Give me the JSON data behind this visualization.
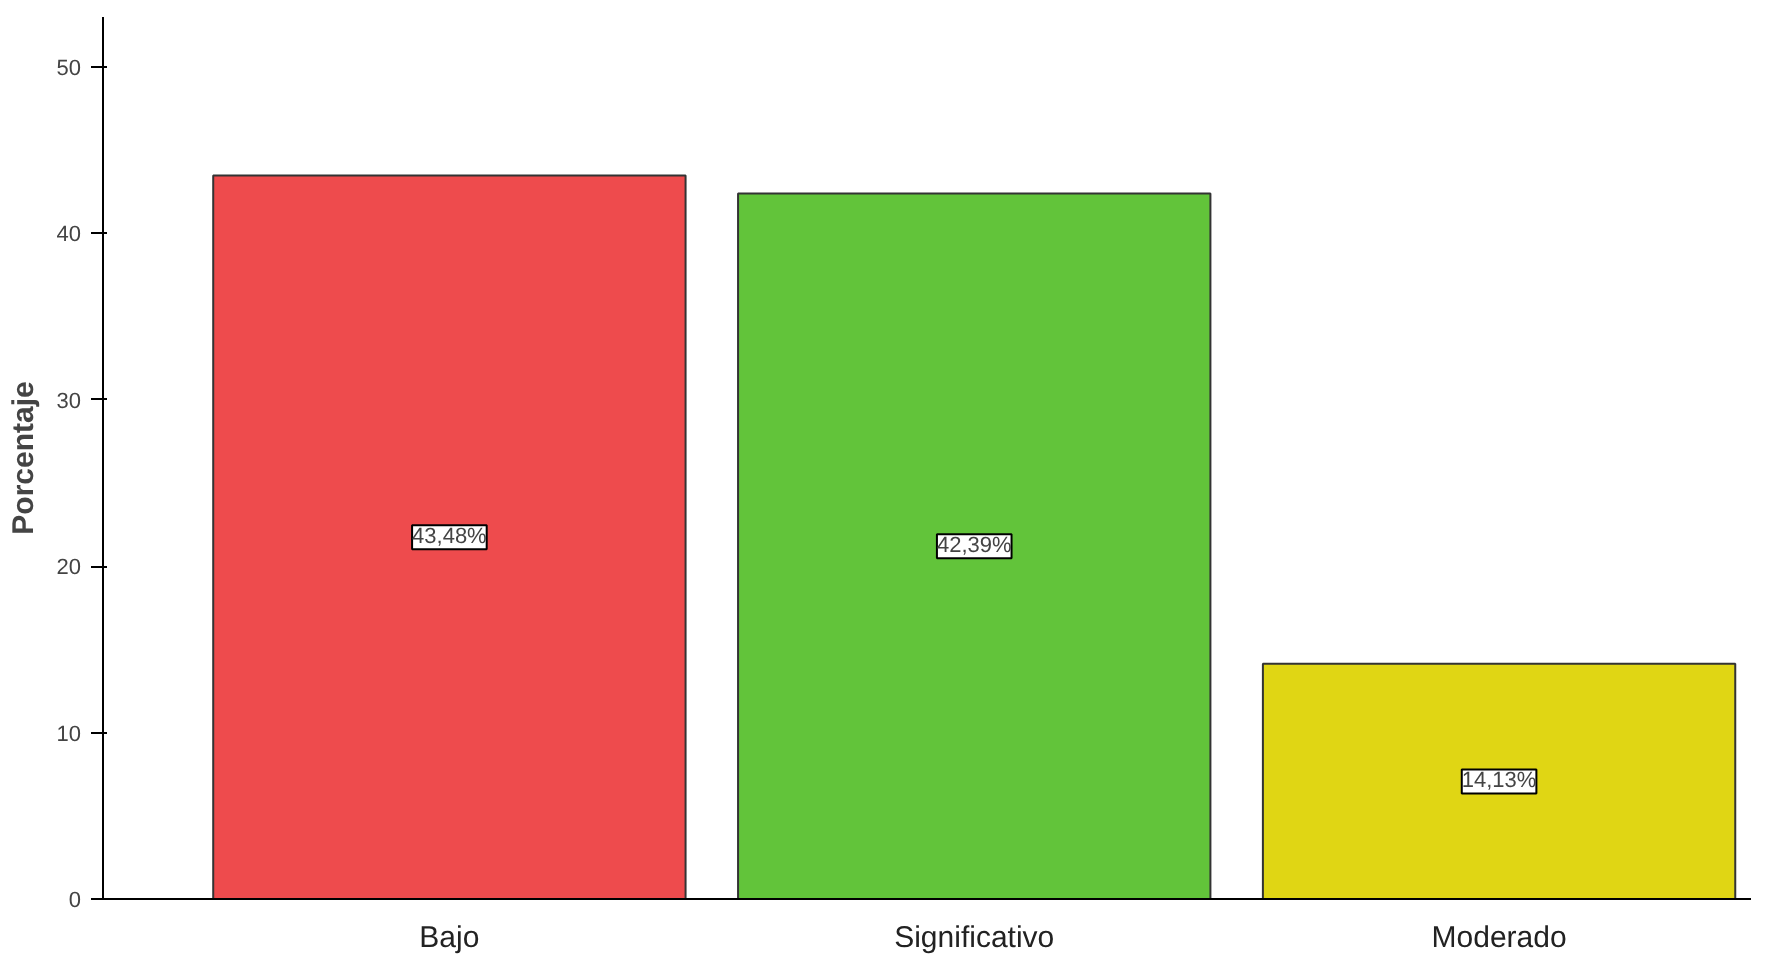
{
  "chart_data": {
    "type": "bar",
    "ylabel": "Porcentaje",
    "categories": [
      "Bajo",
      "Significativo",
      "Moderado"
    ],
    "values": [
      43.48,
      42.39,
      14.13
    ],
    "colors": [
      "#ee4b4d",
      "#62c43a",
      "#e0d614"
    ],
    "value_labels": [
      "43,48%",
      "42,39%",
      "14,13%"
    ],
    "ylim": [
      0,
      53
    ],
    "yticks": [
      0,
      10,
      20,
      30,
      40,
      50
    ],
    "grid": false
  }
}
